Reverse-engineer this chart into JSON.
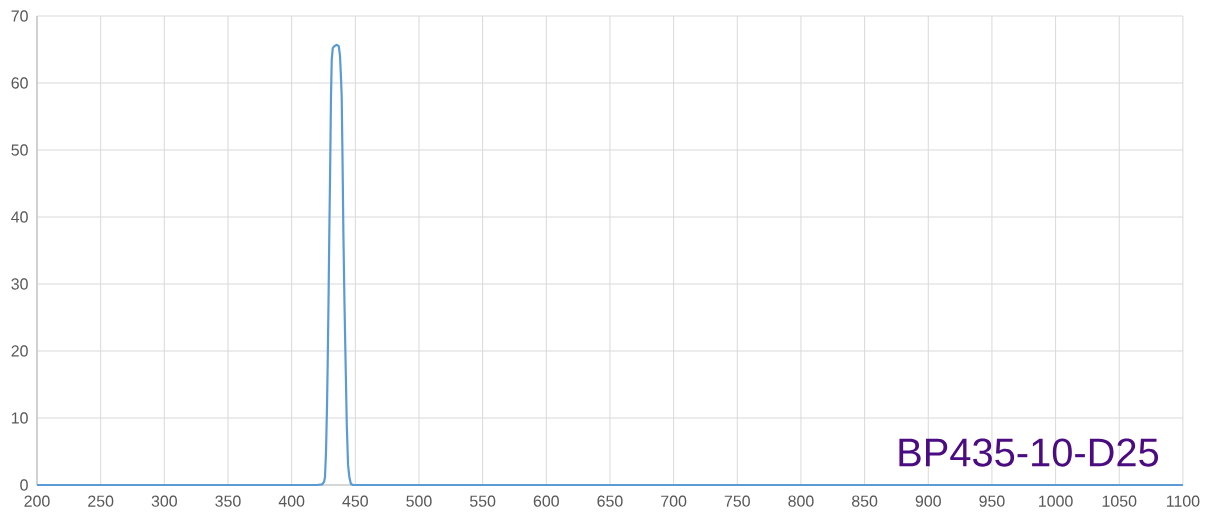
{
  "chart_data": {
    "type": "line",
    "x": [
      200,
      420,
      424,
      425.5,
      426.2,
      427,
      427.8,
      428.3,
      429,
      429.6,
      430.3,
      430.9,
      431.5,
      432.3,
      433.5,
      435.5,
      437,
      438,
      438.7,
      439.3,
      440,
      440.6,
      441.5,
      442.4,
      443.3,
      444.3,
      445.3,
      446.5,
      448,
      1100
    ],
    "values": [
      0,
      0,
      0.1,
      0.5,
      1.2,
      5,
      12,
      18,
      28,
      38,
      48,
      58,
      63.5,
      65.2,
      65.5,
      65.7,
      65.5,
      64,
      61,
      58,
      48,
      38,
      27,
      18,
      9,
      3,
      1.2,
      0.2,
      0,
      0
    ],
    "color": "#5b9bd5",
    "xlim": [
      200,
      1100
    ],
    "ylim": [
      0,
      70
    ],
    "xticks": [
      200,
      250,
      300,
      350,
      400,
      450,
      500,
      550,
      600,
      650,
      700,
      750,
      800,
      850,
      900,
      950,
      1000,
      1050,
      1100
    ],
    "yticks": [
      0,
      10,
      20,
      30,
      40,
      50,
      60,
      70
    ],
    "grid": true,
    "annotations": [
      "BP435-10-D25"
    ]
  }
}
